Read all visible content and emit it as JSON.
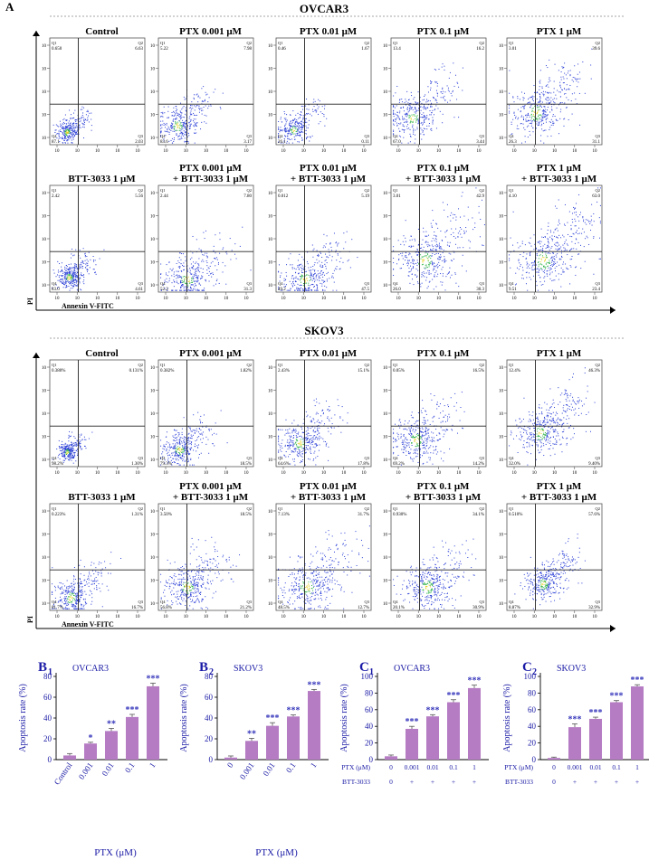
{
  "figure_letter_a": "A",
  "panel_letters": {
    "b1": "B",
    "b1_sub": "1",
    "b2": "B",
    "b2_sub": "2",
    "c1": "C",
    "c1_sub": "1",
    "c2": "C",
    "c2_sub": "2"
  },
  "colors": {
    "bar": "#b57cc4",
    "star": "#3333bb",
    "axis_text": "#1a1aa6",
    "cell_title": "#000000"
  },
  "flow": [
    {
      "cell_line": "OVCAR3",
      "x_axis_label": "Annexin V-FITC",
      "y_axis_label": "PI",
      "rows": [
        [
          {
            "title_lines": [
              "Control"
            ],
            "q1": "0.650",
            "q2": "6.63",
            "q3": "2.03",
            "q4": "87.1",
            "x_mean": 0.18,
            "y_mean": 0.12,
            "spread": 0.06,
            "vol": 0.35
          },
          {
            "title_lines": [
              "PTX 0.001 μM"
            ],
            "q1": "5.22",
            "q2": "7.98",
            "q3": "3.17",
            "q4": "83.6",
            "x_mean": 0.2,
            "y_mean": 0.18,
            "spread": 0.1,
            "vol": 0.45
          },
          {
            "title_lines": [
              "PTX 0.01 μM"
            ],
            "q1": "0.46",
            "q2": "1.67",
            "q3": "0.11",
            "q4": "26.1",
            "x_mean": 0.18,
            "y_mean": 0.14,
            "spread": 0.08,
            "vol": 0.3
          },
          {
            "title_lines": [
              "PTX 0.1 μM"
            ],
            "q1": "13.4",
            "q2": "16.2",
            "q3": "3.44",
            "q4": "67.0",
            "x_mean": 0.22,
            "y_mean": 0.25,
            "spread": 0.12,
            "vol": 0.5
          },
          {
            "title_lines": [
              "PTX 1 μM"
            ],
            "q1": "3.01",
            "q2": "39.6",
            "q3": "31.1",
            "q4": "26.3",
            "x_mean": 0.3,
            "y_mean": 0.3,
            "spread": 0.14,
            "vol": 0.6
          }
        ],
        [
          {
            "title_lines": [
              "BTT-3033 1 μM"
            ],
            "q1": "2.42",
            "q2": "5.56",
            "q3": "4.61",
            "q4": "83.0",
            "x_mean": 0.2,
            "y_mean": 0.14,
            "spread": 0.07,
            "vol": 0.45
          },
          {
            "title_lines": [
              "PTX 0.001 μM",
              "+ BTT-3033 1 μM"
            ],
            "q1": "2.44",
            "q2": "7.80",
            "q3": "31.3",
            "q4": "52.2",
            "x_mean": 0.3,
            "y_mean": 0.12,
            "spread": 0.12,
            "vol": 0.45
          },
          {
            "title_lines": [
              "PTX 0.01 μM",
              "+ BTT-3033 1 μM"
            ],
            "q1": "0.012",
            "q2": "5.19",
            "q3": "47.5",
            "q4": "49.2",
            "x_mean": 0.3,
            "y_mean": 0.12,
            "spread": 0.12,
            "vol": 0.45
          },
          {
            "title_lines": [
              "PTX 0.1 μM",
              "+ BTT-3033 1 μM"
            ],
            "q1": "3.01",
            "q2": "42.9",
            "q3": "30.3",
            "q4": "26.0",
            "x_mean": 0.35,
            "y_mean": 0.3,
            "spread": 0.15,
            "vol": 0.6
          },
          {
            "title_lines": [
              "PTX 1 μM",
              "+ BTT-3033 1 μM"
            ],
            "q1": "4.10",
            "q2": "63.0",
            "q3": "23.4",
            "q4": "9.51",
            "x_mean": 0.38,
            "y_mean": 0.3,
            "spread": 0.16,
            "vol": 0.65
          }
        ]
      ]
    },
    {
      "cell_line": "SKOV3",
      "x_axis_label": "Annexin V-FITC",
      "y_axis_label": "PI",
      "rows": [
        [
          {
            "title_lines": [
              "Control"
            ],
            "q1": "0.380%",
            "q2": "0.131%",
            "q3": "1.30%",
            "q4": "98.2%",
            "x_mean": 0.18,
            "y_mean": 0.14,
            "spread": 0.05,
            "vol": 0.3
          },
          {
            "title_lines": [
              "PTX 0.001 μM"
            ],
            "q1": "0.382%",
            "q2": "1.82%",
            "q3": "18.5%",
            "q4": "79.3%",
            "x_mean": 0.22,
            "y_mean": 0.16,
            "spread": 0.09,
            "vol": 0.45
          },
          {
            "title_lines": [
              "PTX 0.01 μM"
            ],
            "q1": "2.43%",
            "q2": "15.1%",
            "q3": "17.8%",
            "q4": "64.6%",
            "x_mean": 0.24,
            "y_mean": 0.22,
            "spread": 0.11,
            "vol": 0.5
          },
          {
            "title_lines": [
              "PTX 0.1 μM"
            ],
            "q1": "0.05%",
            "q2": "16.5%",
            "q3": "14.2%",
            "q4": "69.2%",
            "x_mean": 0.26,
            "y_mean": 0.25,
            "spread": 0.12,
            "vol": 0.55
          },
          {
            "title_lines": [
              "PTX 1 μM"
            ],
            "q1": "12.4%",
            "q2": "46.3%",
            "q3": "9.40%",
            "q4": "32.0%",
            "x_mean": 0.35,
            "y_mean": 0.32,
            "spread": 0.13,
            "vol": 0.6
          }
        ],
        [
          {
            "title_lines": [
              "BTT-3033 1 μM"
            ],
            "q1": "0.223%",
            "q2": "1.31%",
            "q3": "16.7%",
            "q4": "81.7%",
            "x_mean": 0.22,
            "y_mean": 0.12,
            "spread": 0.1,
            "vol": 0.45
          },
          {
            "title_lines": [
              "PTX 0.001 μM",
              "+ BTT-3033 1 μM"
            ],
            "q1": "3.50%",
            "q2": "18.5%",
            "q3": "21.2%",
            "q4": "56.8%",
            "x_mean": 0.3,
            "y_mean": 0.22,
            "spread": 0.12,
            "vol": 0.55
          },
          {
            "title_lines": [
              "PTX 0.01 μM",
              "+ BTT-3033 1 μM"
            ],
            "q1": "7.13%",
            "q2": "31.7%",
            "q3": "12.7%",
            "q4": "48.5%",
            "x_mean": 0.32,
            "y_mean": 0.22,
            "spread": 0.14,
            "vol": 0.6
          },
          {
            "title_lines": [
              "PTX 0.1 μM",
              "+ BTT-3033 1 μM"
            ],
            "q1": "0.930%",
            "q2": "34.1%",
            "q3": "30.9%",
            "q4": "20.1%",
            "x_mean": 0.38,
            "y_mean": 0.22,
            "spread": 0.12,
            "vol": 0.55
          },
          {
            "title_lines": [
              "PTX 1 μM",
              "+ BTT-3033 1 μM"
            ],
            "q1": "0.510%",
            "q2": "57.6%",
            "q3": "32.9%",
            "q4": "8.87%",
            "x_mean": 0.38,
            "y_mean": 0.25,
            "spread": 0.1,
            "vol": 0.5
          }
        ]
      ]
    }
  ],
  "chart_data": [
    {
      "id": "B1",
      "type": "bar",
      "title": "OVCAR3",
      "categories": [
        "Control",
        "0.001",
        "0.01",
        "0.1",
        "1"
      ],
      "values": [
        4,
        15.5,
        27.5,
        41,
        70.5
      ],
      "errors": [
        1.8,
        1.2,
        2.5,
        2.5,
        3
      ],
      "significance": [
        "",
        "*",
        "**",
        "***",
        "***"
      ],
      "xlabel": "PTX (μM)",
      "ylabel": "Apoptosis rate (%)",
      "ylim": [
        0,
        80
      ],
      "yticks": [
        0,
        20,
        40,
        60,
        80
      ]
    },
    {
      "id": "B2",
      "type": "bar",
      "title": "SKOV3",
      "categories": [
        "0",
        "0.001",
        "0.01",
        "0.1",
        "1"
      ],
      "values": [
        2,
        18,
        32.5,
        41.5,
        66
      ],
      "errors": [
        1.5,
        2.5,
        3,
        1.5,
        1.5
      ],
      "significance": [
        "",
        "**",
        "***",
        "***",
        "***"
      ],
      "xlabel": "PTX (μM)",
      "ylabel": "Apoptosis rate (%)",
      "ylim": [
        0,
        80
      ],
      "yticks": [
        0,
        20,
        40,
        60,
        80
      ]
    },
    {
      "id": "C1",
      "type": "bar",
      "title": "OVCAR3",
      "categories": [
        "0",
        "0.001",
        "0.01",
        "0.1",
        "1"
      ],
      "btt": [
        "0",
        "+",
        "+",
        "+",
        "+"
      ],
      "values": [
        4,
        37,
        52,
        69,
        86
      ],
      "errors": [
        1.5,
        3,
        2,
        3,
        3.5
      ],
      "significance": [
        "",
        "***",
        "***",
        "***",
        "***"
      ],
      "xlabel": "PTX (μM)",
      "row2_label": "BTT-3033",
      "ylabel": "Apoptosis rate (%)",
      "ylim": [
        0,
        100
      ],
      "yticks": [
        0,
        20,
        40,
        60,
        80,
        100
      ]
    },
    {
      "id": "C2",
      "type": "bar",
      "title": "SKOV3",
      "categories": [
        "0",
        "0.001",
        "0.01",
        "0.1",
        "1"
      ],
      "btt": [
        "0",
        "+",
        "+",
        "+",
        "+"
      ],
      "values": [
        2,
        39,
        49,
        69,
        88
      ],
      "errors": [
        1,
        4,
        2,
        2,
        2
      ],
      "significance": [
        "",
        "***",
        "***",
        "***",
        "***"
      ],
      "xlabel": "PTX (μM)",
      "row2_label": "BTT-3033",
      "ylabel": "Apoptosis rate (%)",
      "ylim": [
        0,
        100
      ],
      "yticks": [
        0,
        20,
        40,
        60,
        80,
        100
      ]
    }
  ]
}
